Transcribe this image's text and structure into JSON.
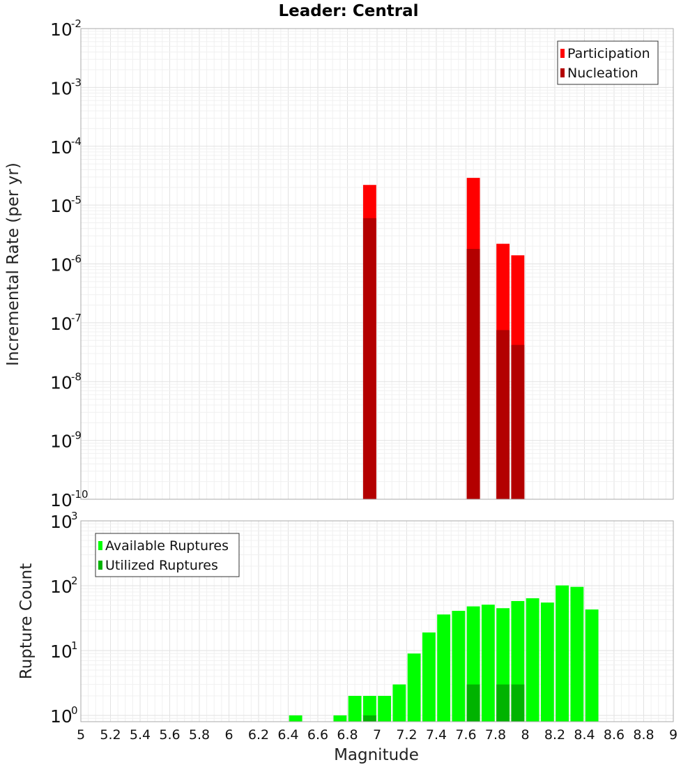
{
  "chart_data": [
    {
      "type": "bar",
      "title": "Leader: Central",
      "xlabel": "",
      "ylabel": "Incremental Rate (per yr)",
      "yscale": "log",
      "ylim": [
        1e-10,
        0.01
      ],
      "xlim": [
        5,
        9
      ],
      "bin_width": 0.1,
      "grid": true,
      "legend_position": "top-right",
      "series": [
        {
          "name": "Participation",
          "color": "#ff0000",
          "x": [
            6.95,
            7.65,
            7.85,
            7.95
          ],
          "values": [
            2.2e-05,
            2.9e-05,
            2.2e-06,
            1.4e-06
          ]
        },
        {
          "name": "Nucleation",
          "color": "#b30000",
          "x": [
            6.95,
            7.65,
            7.85,
            7.95
          ],
          "values": [
            6e-06,
            1.8e-06,
            7.5e-08,
            4.2e-08
          ]
        }
      ]
    },
    {
      "type": "bar",
      "title": "",
      "xlabel": "Magnitude",
      "ylabel": "Rupture Count",
      "yscale": "log",
      "ylim": [
        0.8,
        1000
      ],
      "xlim": [
        5,
        9
      ],
      "bin_width": 0.1,
      "grid": true,
      "legend_position": "top-left",
      "x_ticks": [
        "5",
        "5.2",
        "5.4",
        "5.6",
        "5.8",
        "6",
        "6.2",
        "6.4",
        "6.6",
        "6.8",
        "7",
        "7.2",
        "7.4",
        "7.6",
        "7.8",
        "8",
        "8.2",
        "8.4",
        "8.6",
        "8.8",
        "9"
      ],
      "series": [
        {
          "name": "Available Ruptures",
          "color": "#00ff00",
          "x": [
            6.45,
            6.75,
            6.85,
            6.95,
            7.05,
            7.15,
            7.25,
            7.35,
            7.45,
            7.55,
            7.65,
            7.75,
            7.85,
            7.95,
            8.05,
            8.15,
            8.25,
            8.35,
            8.45
          ],
          "values": [
            1,
            1,
            2,
            2,
            2,
            3,
            9,
            19,
            36,
            41,
            48,
            51,
            45,
            58,
            64,
            55,
            101,
            96,
            43
          ]
        },
        {
          "name": "Utilized Ruptures",
          "color": "#00b300",
          "x": [
            6.95,
            7.65,
            7.85,
            7.95
          ],
          "values": [
            1,
            3,
            3,
            3
          ]
        }
      ]
    }
  ]
}
